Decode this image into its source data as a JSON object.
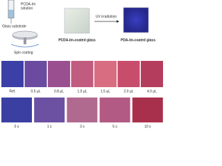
{
  "process": {
    "solution": [
      "PCDA-Im",
      "solution"
    ],
    "substrate": "Glass substrate",
    "spin": "Spin coating",
    "coated": "PCDA-Im-coated glass",
    "uv": "UV irradiation",
    "polymerized": "PDA-Im-coated glass"
  },
  "volume_row": [
    {
      "label": "Ref.",
      "color": "#3c3fa6"
    },
    {
      "label": "0.5 μL",
      "color": "#6a4b9f"
    },
    {
      "label": "0.8 μL",
      "color": "#9a5090"
    },
    {
      "label": "1.0 μL",
      "color": "#c25b80"
    },
    {
      "label": "1.5 μL",
      "color": "#d86c80"
    },
    {
      "label": "2.0 μL",
      "color": "#c84c6c"
    },
    {
      "label": "4.0 μL",
      "color": "#b43c5c"
    }
  ],
  "time_row": [
    {
      "label": "0 s",
      "color": "#3b3fa2"
    },
    {
      "label": "1 s",
      "color": "#6c50a2"
    },
    {
      "label": "3 s",
      "color": "#b06a90"
    },
    {
      "label": "5 s",
      "color": "#b25a84"
    },
    {
      "label": "10 s",
      "color": "#a8304c"
    }
  ]
}
